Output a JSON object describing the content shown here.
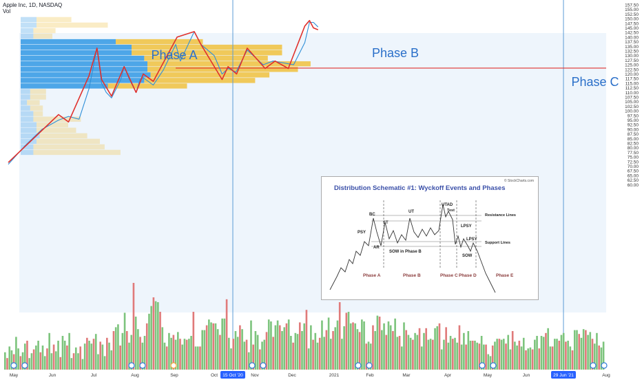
{
  "header": {
    "symbol_line": "Apple Inc, 1D, NASDAQ",
    "volume_label": "Vol"
  },
  "colors": {
    "price_line": "#2f8fd8",
    "trend_line": "#e0302c",
    "phase_text": "#2a6fc9",
    "vbp_up": "#4da6e8",
    "vbp_down": "#f0c95a",
    "vol_up": "#7dc47d",
    "vol_down": "#e07a7a",
    "highlight_bg": "#eef5fc"
  },
  "phase_labels": [
    "Phase A",
    "Phase B",
    "Phase C"
  ],
  "date_badges": [
    "15 Oct '20",
    "29 Jun '21"
  ],
  "inset": {
    "title": "Distribution Schematic #1: Wyckoff Events and Phases",
    "credit": "© StockCharts.com",
    "labels": [
      "BC",
      "PSY",
      "AR",
      "ST",
      "UT",
      "UTAD",
      "Test",
      "LPSY",
      "LPSY",
      "SOW",
      "SOW in Phase B",
      "Resistance Lines",
      "Support Lines"
    ],
    "phases": [
      "Phase A",
      "Phase B",
      "Phase C",
      "Phase D",
      "Phase E"
    ]
  },
  "chart_data": {
    "type": "line",
    "title": "Apple Inc, 1D, NASDAQ",
    "x_tick_labels": [
      "May",
      "Jun",
      "Jul",
      "Aug",
      "Sep",
      "Oct",
      "Nov",
      "Dec",
      "2021",
      "Feb",
      "Mar",
      "Apr",
      "May",
      "Jun",
      "Aug"
    ],
    "y_tick_labels": [
      "157.50",
      "155.00",
      "152.50",
      "150.00",
      "147.50",
      "145.00",
      "142.50",
      "140.00",
      "137.50",
      "135.00",
      "132.50",
      "130.00",
      "127.50",
      "125.00",
      "122.50",
      "120.00",
      "117.50",
      "115.00",
      "112.50",
      "110.00",
      "107.50",
      "105.00",
      "102.50",
      "100.00",
      "97.50",
      "95.00",
      "92.50",
      "90.00",
      "87.50",
      "85.00",
      "82.50",
      "80.00",
      "77.50",
      "75.00",
      "72.50",
      "70.00",
      "67.50",
      "65.00",
      "62.50",
      "60.00"
    ],
    "ylim": [
      60,
      158
    ],
    "horizontal_line": 123.2,
    "series": [
      {
        "x": [
          "2020-04-20",
          "2020-05-15",
          "2020-06-10",
          "2020-07-05",
          "2020-07-20",
          "2020-08-05",
          "2020-08-20",
          "2020-09-01",
          "2020-09-08",
          "2020-09-15",
          "2020-09-23",
          "2020-10-07",
          "2020-10-12",
          "2020-10-20",
          "2020-10-30",
          "2020-11-05",
          "2020-11-10",
          "2020-11-25",
          "2020-12-10",
          "2020-12-29",
          "2021-01-05",
          "2021-01-26",
          "2021-02-05",
          "2021-02-25",
          "2021-03-09",
          "2021-03-18",
          "2021-03-30",
          "2021-04-16",
          "2021-05-10",
          "2021-05-25",
          "2021-06-10",
          "2021-06-25",
          "2021-07-12",
          "2021-07-19",
          "2021-07-25",
          "2021-08-01"
        ],
        "values": [
          71,
          81,
          90,
          95,
          97,
          95.5,
          112,
          134,
          115,
          110,
          107,
          117,
          124,
          117,
          110,
          117,
          118,
          114,
          122,
          136,
          127,
          143,
          136,
          130,
          120,
          123,
          121,
          133,
          125,
          127,
          126,
          125,
          137,
          148,
          148,
          145.5
        ]
      },
      {
        "x": [
          "2020-04-20",
          "2020-07-05",
          "2020-07-20",
          "2020-08-20",
          "2020-09-01",
          "2020-09-08",
          "2020-09-23",
          "2020-10-12",
          "2020-10-30",
          "2020-11-10",
          "2020-11-25",
          "2020-12-31",
          "2021-01-26",
          "2021-02-05",
          "2021-03-09",
          "2021-03-18",
          "2021-03-31",
          "2021-04-16",
          "2021-05-13",
          "2021-05-28",
          "2021-06-17",
          "2021-07-12",
          "2021-07-19",
          "2021-07-25",
          "2021-08-01"
        ],
        "values": [
          72,
          98,
          94,
          119,
          134,
          117,
          108,
          124,
          110,
          120,
          116,
          140,
          143,
          136,
          117,
          124,
          120,
          134,
          123,
          127,
          123,
          146,
          149,
          145,
          144
        ]
      }
    ],
    "volume_profile": {
      "price_levels": [
        149.5,
        146.5,
        143.5,
        140.5,
        137.5,
        134.5,
        131.5,
        128.5,
        125.5,
        122.5,
        119.5,
        116.5,
        113.5,
        110.5,
        107.5,
        104.5,
        101.5,
        98.5,
        95.5,
        92.5,
        89.5,
        86.5,
        83.5,
        80.5,
        77.5
      ],
      "up": [
        10,
        10,
        8,
        8,
        60,
        70,
        70,
        78,
        80,
        80,
        82,
        78,
        55,
        6,
        6,
        4,
        6,
        8,
        8,
        10,
        10,
        12,
        10,
        8,
        8
      ],
      "down": [
        22,
        45,
        14,
        12,
        55,
        95,
        95,
        78,
        103,
        95,
        75,
        70,
        50,
        10,
        10,
        8,
        8,
        6,
        30,
        20,
        25,
        30,
        40,
        45,
        55
      ]
    },
    "volume": [
      18,
      12,
      24,
      20,
      16,
      34,
      22,
      14,
      18,
      27,
      30,
      12,
      17,
      21,
      25,
      30,
      18,
      25,
      14,
      22,
      38,
      17,
      26,
      19,
      30,
      13,
      35,
      30,
      25,
      38,
      12,
      17,
      23,
      17,
      24,
      11,
      27,
      33,
      30,
      27,
      32,
      37,
      16,
      29,
      26,
      14,
      33,
      28,
      20,
      40,
      44,
      47,
      25,
      38,
      59,
      40,
      28,
      36,
      90,
      55,
      42,
      34,
      28,
      35,
      48,
      58,
      66,
      75,
      71,
      70,
      60,
      44,
      28,
      24,
      38,
      33,
      36,
      31,
      39,
      32,
      26,
      32,
      31,
      32,
      35,
      60,
      24,
      24,
      24,
      41,
      41,
      46,
      52,
      49,
      48,
      48,
      42,
      36,
      53,
      53,
      73,
      33,
      22,
      32,
      40,
      34,
      46,
      42,
      29,
      31,
      18,
      51,
      26,
      40,
      36,
      21,
      29,
      31,
      39,
      52,
      50,
      34,
      46,
      51,
      46,
      40,
      44,
      48,
      52,
      35,
      28,
      38,
      37,
      49,
      40,
      48,
      62,
      22,
      46,
      31,
      38,
      28,
      33,
      51,
      34,
      41,
      54,
      32,
      40,
      44,
      51,
      70,
      32,
      45,
      59,
      60,
      48,
      49,
      48,
      42,
      39,
      52,
      50,
      27,
      29,
      27,
      46,
      40,
      56,
      55,
      41,
      48,
      36,
      50,
      46,
      40,
      53,
      34,
      35,
      24,
      49,
      41,
      36,
      33,
      31,
      38,
      36,
      43,
      24,
      38,
      43,
      31,
      32,
      31,
      43,
      45,
      48,
      21,
      31,
      44,
      28,
      35,
      32,
      33,
      28,
      46,
      26,
      38,
      26,
      40,
      30,
      30,
      30,
      28,
      27,
      35,
      26,
      26,
      16,
      14,
      25,
      29,
      32,
      32,
      31,
      32,
      27,
      36,
      21,
      40,
      29,
      25,
      30,
      24,
      33,
      20,
      22,
      23,
      21,
      31,
      35,
      22,
      35,
      34,
      38,
      43,
      24,
      24,
      32,
      32,
      30,
      36,
      38,
      29,
      30,
      24,
      20,
      41,
      41,
      37,
      33,
      42,
      41,
      36,
      39,
      32,
      27,
      38,
      25,
      23,
      29
    ]
  }
}
